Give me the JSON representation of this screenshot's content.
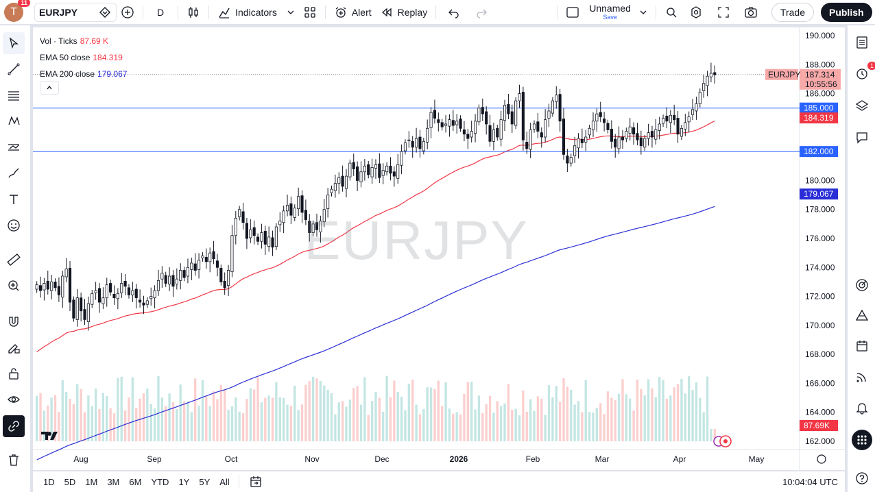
{
  "topbar": {
    "avatar_letter": "T",
    "avatar_badge": "11",
    "symbol": "EURJPY",
    "interval": "D",
    "indicators_label": "Indicators",
    "alert_label": "Alert",
    "replay_label": "Replay",
    "layout_name": "Unnamed",
    "layout_save": "Save",
    "trade_label": "Trade",
    "publish_label": "Publish"
  },
  "legend": {
    "vol_label": "Vol · Ticks",
    "vol_value": "87.69 K",
    "ema50_label": "EMA 50 close",
    "ema50_value": "184.319",
    "ema200_label": "EMA 200 close",
    "ema200_value": "179.067",
    "collapse_icon": "chevron-up"
  },
  "watermark": "EURJPY",
  "price_axis": {
    "ticks": [
      "190.000",
      "188.000",
      "186.000",
      "180.000",
      "178.000",
      "176.000",
      "174.000",
      "172.000",
      "170.000",
      "168.000",
      "166.000",
      "164.000",
      "162.000"
    ],
    "last_price": "187.314",
    "countdown": "10:55:56",
    "symbol_tag": "EURJPY",
    "line_185": "185.000",
    "ema50_tag": "184.319",
    "line_182": "182.000",
    "ema200_tag": "179.067",
    "volume_tag": "87.69K"
  },
  "time_axis": {
    "labels": [
      "Aug",
      "Sep",
      "Oct",
      "Nov",
      "Dec",
      "2026",
      "Feb",
      "Mar",
      "Apr",
      "May"
    ]
  },
  "bottombar": {
    "ranges": [
      "1D",
      "5D",
      "1M",
      "3M",
      "6M",
      "YTD",
      "1Y",
      "5Y",
      "All"
    ],
    "clock": "10:04:04 UTC"
  },
  "righttools": {
    "alert_badge": "1"
  },
  "colors": {
    "up": "#26a69a",
    "down": "#ef5350",
    "ema50": "#f23645",
    "ema200": "#2a2ed6",
    "hline": "#2962ff",
    "accent": "#2962ff"
  },
  "chart_data": {
    "type": "candlestick",
    "symbol": "EURJPY",
    "interval": "D",
    "y_range": [
      161.5,
      191.0
    ],
    "horizontal_lines": [
      185.0,
      182.0
    ],
    "last_price": 187.314,
    "ema50_last": 184.319,
    "ema200_last": 179.067,
    "volume_last": "87.69K",
    "closes": [
      172.8,
      172.4,
      172.9,
      172.5,
      173.0,
      172.6,
      172.1,
      173.4,
      173.9,
      171.6,
      170.5,
      171.9,
      171.0,
      170.4,
      171.5,
      172.2,
      172.4,
      171.6,
      171.9,
      172.8,
      172.3,
      171.9,
      172.2,
      172.9,
      172.7,
      172.1,
      172.4,
      171.9,
      171.6,
      171.4,
      171.7,
      172.0,
      172.4,
      173.1,
      173.6,
      172.9,
      173.4,
      172.7,
      173.2,
      173.8,
      173.3,
      174.0,
      174.3,
      173.8,
      174.5,
      174.8,
      174.4,
      175.0,
      174.6,
      174.0,
      173.0,
      172.6,
      173.8,
      176.2,
      177.4,
      178.0,
      177.1,
      176.0,
      176.6,
      176.2,
      175.8,
      176.4,
      175.6,
      176.1,
      175.4,
      176.8,
      177.2,
      177.9,
      178.3,
      177.6,
      178.1,
      178.9,
      177.8,
      177.3,
      176.4,
      177.0,
      176.6,
      177.2,
      178.0,
      179.0,
      179.4,
      179.8,
      180.2,
      179.6,
      180.3,
      181.2,
      180.8,
      180.0,
      180.6,
      181.0,
      180.4,
      180.9,
      181.1,
      180.2,
      180.7,
      181.0,
      180.5,
      180.3,
      181.1,
      182.0,
      182.6,
      182.8,
      182.3,
      182.9,
      182.2,
      182.7,
      183.6,
      184.7,
      184.3,
      184.0,
      183.7,
      183.9,
      184.2,
      183.8,
      184.1,
      183.6,
      183.2,
      182.9,
      183.4,
      184.1,
      185.0,
      184.6,
      183.9,
      182.7,
      183.5,
      183.0,
      184.2,
      185.2,
      184.6,
      183.9,
      185.5,
      186.0,
      182.8,
      182.2,
      183.5,
      183.9,
      183.4,
      183.0,
      184.2,
      184.8,
      185.5,
      185.9,
      184.1,
      181.8,
      181.2,
      181.6,
      182.4,
      182.9,
      182.6,
      183.0,
      183.6,
      184.1,
      184.6,
      184.4,
      184.0,
      183.5,
      182.7,
      182.3,
      183.0,
      182.8,
      183.4,
      183.7,
      183.2,
      182.8,
      182.4,
      182.9,
      183.3,
      183.0,
      183.5,
      183.9,
      184.3,
      184.1,
      184.5,
      184.2,
      183.2,
      183.6,
      184.0,
      184.4,
      184.9,
      185.3,
      186.1,
      186.7,
      187.2,
      187.4,
      187.3
    ]
  }
}
